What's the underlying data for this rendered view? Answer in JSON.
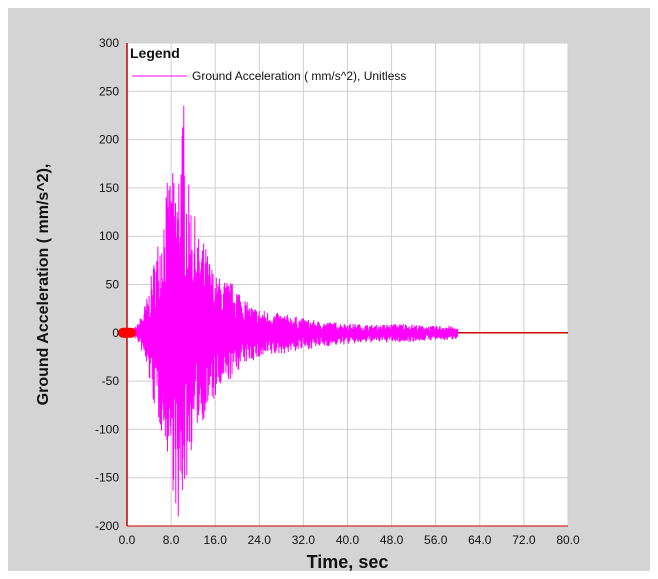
{
  "chart_data": {
    "type": "line",
    "title": "",
    "xlabel": "Time,  sec",
    "ylabel": "Ground Acceleration ( mm/s^2),",
    "xlim": [
      0,
      80
    ],
    "ylim": [
      -200,
      300
    ],
    "x_ticks": [
      0,
      8,
      16,
      24,
      32,
      40,
      48,
      56,
      64,
      72,
      80
    ],
    "x_tick_labels": [
      "0.0",
      "8.0",
      "16.0",
      "24.0",
      "32.0",
      "40.0",
      "48.0",
      "56.0",
      "64.0",
      "72.0",
      "80.0"
    ],
    "y_ticks": [
      -200,
      -150,
      -100,
      -50,
      0,
      50,
      100,
      150,
      200,
      250,
      300
    ],
    "y_tick_labels": [
      "-200",
      "-150",
      "-100",
      "-50",
      "0",
      "50",
      "100",
      "150",
      "200",
      "250",
      "300"
    ],
    "grid": true,
    "legend": {
      "title": "Legend",
      "placement": "top-left"
    },
    "series": [
      {
        "name": "Ground Acceleration ( mm/s^2), Unitless",
        "color": "#ff00ff",
        "envelope": {
          "time": [
            0,
            1,
            2,
            3,
            4,
            5,
            6,
            7,
            8,
            9,
            10,
            11,
            12,
            13,
            14,
            16,
            18,
            20,
            22,
            24,
            26,
            28,
            30,
            32,
            35,
            40,
            45,
            50,
            55,
            58,
            60
          ],
          "max": [
            2,
            3,
            10,
            25,
            45,
            80,
            110,
            150,
            170,
            160,
            235,
            160,
            130,
            100,
            95,
            60,
            55,
            50,
            30,
            25,
            22,
            20,
            18,
            15,
            12,
            10,
            8,
            10,
            7,
            8,
            5
          ],
          "min": [
            -2,
            -3,
            -10,
            -25,
            -50,
            -80,
            -100,
            -115,
            -150,
            -190,
            -175,
            -150,
            -110,
            -95,
            -90,
            -70,
            -55,
            -40,
            -30,
            -28,
            -25,
            -22,
            -20,
            -18,
            -15,
            -12,
            -10,
            -10,
            -8,
            -8,
            -6
          ]
        }
      }
    ]
  },
  "colors": {
    "frame_background": "#d4d4d4",
    "plot_background": "#ffffff",
    "grid": "#cfcfcf",
    "axis": "#cc0000",
    "marker": "#ff0000"
  }
}
